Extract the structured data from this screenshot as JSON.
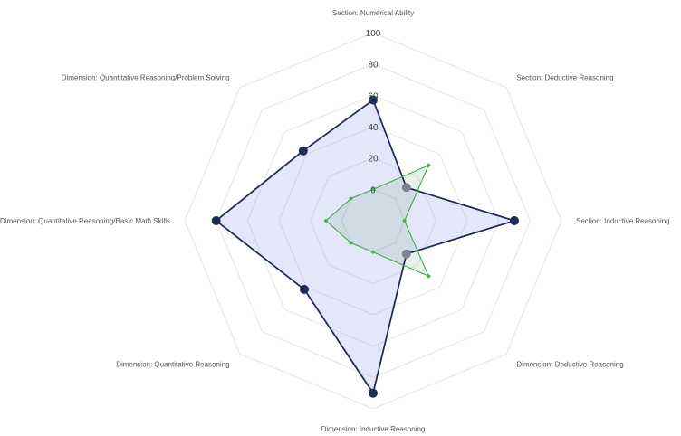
{
  "chart_data": {
    "type": "radar",
    "axes": [
      "Section: Numerical Ability",
      "Section: Deductive Reasoning",
      "Section: Inductive Reasoning",
      "Dimension: Deductive Reasoning",
      "Dimension: Inductive Reasoning",
      "Dimension: Quantitative Reasoning",
      "Dimension: Quantitative Reasoning/Basic Math Skills",
      "Dimension: Quantitative Reasoning/Problem Solving"
    ],
    "radial_ticks": [
      "0",
      "20",
      "40",
      "60",
      "80",
      "100"
    ],
    "rmin": -20,
    "rmax": 100,
    "grid": true,
    "legend": "none",
    "series": [
      {
        "values": [
          57,
          10,
          70,
          10,
          90,
          42,
          80,
          43
        ],
        "color": "#1f2d56",
        "fill": "rgba(99,120,220,0.18)",
        "marker_colors": [
          "#1f2d56",
          "#7b8592",
          "#1f2d56",
          "#7b8592",
          "#1f2d56",
          "#1f2d56",
          "#1f2d56",
          "#1f2d56"
        ]
      },
      {
        "values": [
          0,
          30,
          0,
          30,
          0,
          0,
          10,
          0
        ],
        "color": "#4caf50",
        "fill": "rgba(120,170,140,0.18)",
        "marker_colors": [
          "#4caf50",
          "#4caf50",
          "#4caf50",
          "#4caf50",
          "#4caf50",
          "#4caf50",
          "#4caf50",
          "#4caf50"
        ]
      }
    ]
  }
}
